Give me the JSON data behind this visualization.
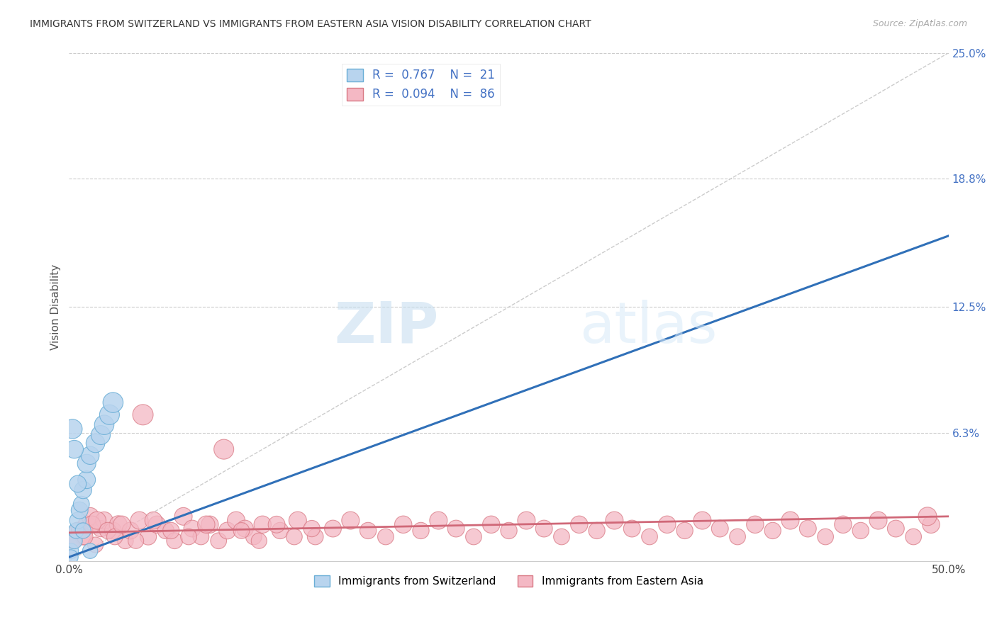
{
  "title": "IMMIGRANTS FROM SWITZERLAND VS IMMIGRANTS FROM EASTERN ASIA VISION DISABILITY CORRELATION CHART",
  "source": "Source: ZipAtlas.com",
  "ylabel": "Vision Disability",
  "xlim": [
    0.0,
    0.5
  ],
  "ylim": [
    0.0,
    0.25
  ],
  "xticks": [
    0.0,
    0.1,
    0.2,
    0.3,
    0.4,
    0.5
  ],
  "xticklabels": [
    "0.0%",
    "",
    "",
    "",
    "",
    "50.0%"
  ],
  "yticks": [
    0.0,
    0.063,
    0.125,
    0.188,
    0.25
  ],
  "yticklabels": [
    "",
    "6.3%",
    "12.5%",
    "18.8%",
    "25.0%"
  ],
  "watermark_zip": "ZIP",
  "watermark_atlas": "atlas",
  "series1_color": "#b8d4ee",
  "series1_edge": "#6aaed6",
  "series2_color": "#f4b8c4",
  "series2_edge": "#d97a85",
  "line1_color": "#3070b8",
  "line2_color": "#d06878",
  "ref_line_color": "#cccccc",
  "background": "#ffffff",
  "grid_color": "#cccccc",
  "blue_line_x0": 0.0,
  "blue_line_y0": 0.002,
  "blue_line_x1": 0.5,
  "blue_line_y1": 0.16,
  "pink_line_x0": 0.0,
  "pink_line_y0": 0.014,
  "pink_line_x1": 0.5,
  "pink_line_y1": 0.022,
  "swiss_x": [
    0.001,
    0.003,
    0.004,
    0.005,
    0.006,
    0.007,
    0.008,
    0.01,
    0.01,
    0.012,
    0.015,
    0.018,
    0.02,
    0.023,
    0.025,
    0.001,
    0.002,
    0.003,
    0.005,
    0.008,
    0.012
  ],
  "swiss_y": [
    0.005,
    0.01,
    0.015,
    0.02,
    0.025,
    0.028,
    0.035,
    0.04,
    0.048,
    0.052,
    0.058,
    0.062,
    0.067,
    0.072,
    0.078,
    0.002,
    0.065,
    0.055,
    0.038,
    0.015,
    0.005
  ],
  "swiss_size": [
    35,
    38,
    36,
    40,
    42,
    38,
    44,
    46,
    50,
    48,
    52,
    54,
    56,
    58,
    60,
    32,
    55,
    48,
    42,
    36,
    34
  ],
  "east_asia_x": [
    0.002,
    0.005,
    0.008,
    0.01,
    0.012,
    0.015,
    0.018,
    0.02,
    0.025,
    0.028,
    0.032,
    0.035,
    0.04,
    0.045,
    0.05,
    0.055,
    0.06,
    0.065,
    0.07,
    0.075,
    0.08,
    0.085,
    0.09,
    0.095,
    0.1,
    0.105,
    0.11,
    0.12,
    0.13,
    0.14,
    0.15,
    0.16,
    0.17,
    0.18,
    0.19,
    0.2,
    0.21,
    0.22,
    0.23,
    0.24,
    0.25,
    0.26,
    0.27,
    0.28,
    0.29,
    0.3,
    0.31,
    0.32,
    0.33,
    0.34,
    0.35,
    0.36,
    0.37,
    0.38,
    0.39,
    0.4,
    0.41,
    0.42,
    0.43,
    0.44,
    0.45,
    0.46,
    0.47,
    0.48,
    0.49,
    0.003,
    0.006,
    0.009,
    0.013,
    0.016,
    0.022,
    0.026,
    0.03,
    0.038,
    0.042,
    0.048,
    0.058,
    0.068,
    0.078,
    0.088,
    0.098,
    0.108,
    0.118,
    0.128,
    0.138,
    0.488
  ],
  "east_asia_y": [
    0.01,
    0.015,
    0.012,
    0.018,
    0.022,
    0.008,
    0.016,
    0.02,
    0.015,
    0.018,
    0.01,
    0.015,
    0.02,
    0.012,
    0.018,
    0.015,
    0.01,
    0.022,
    0.016,
    0.012,
    0.018,
    0.01,
    0.015,
    0.02,
    0.016,
    0.012,
    0.018,
    0.015,
    0.02,
    0.012,
    0.016,
    0.02,
    0.015,
    0.012,
    0.018,
    0.015,
    0.02,
    0.016,
    0.012,
    0.018,
    0.015,
    0.02,
    0.016,
    0.012,
    0.018,
    0.015,
    0.02,
    0.016,
    0.012,
    0.018,
    0.015,
    0.02,
    0.016,
    0.012,
    0.018,
    0.015,
    0.02,
    0.016,
    0.012,
    0.018,
    0.015,
    0.02,
    0.016,
    0.012,
    0.018,
    0.01,
    0.015,
    0.012,
    0.018,
    0.02,
    0.015,
    0.012,
    0.018,
    0.01,
    0.072,
    0.02,
    0.015,
    0.012,
    0.018,
    0.055,
    0.015,
    0.01,
    0.018,
    0.012,
    0.016,
    0.022
  ],
  "east_asia_size": [
    38,
    42,
    40,
    44,
    46,
    36,
    40,
    44,
    42,
    46,
    38,
    42,
    46,
    40,
    44,
    40,
    38,
    46,
    42,
    38,
    44,
    38,
    42,
    46,
    42,
    38,
    44,
    40,
    46,
    38,
    42,
    46,
    40,
    38,
    44,
    40,
    46,
    42,
    38,
    44,
    40,
    46,
    42,
    38,
    44,
    40,
    46,
    42,
    38,
    44,
    40,
    46,
    42,
    38,
    44,
    40,
    46,
    42,
    38,
    44,
    40,
    46,
    42,
    38,
    44,
    36,
    40,
    38,
    44,
    46,
    40,
    38,
    44,
    36,
    62,
    44,
    40,
    38,
    44,
    58,
    38,
    36,
    42,
    38,
    40,
    50
  ]
}
